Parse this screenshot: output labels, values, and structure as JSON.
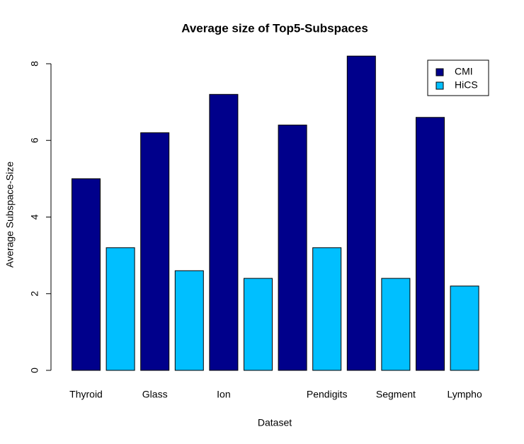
{
  "chart_data": {
    "type": "bar",
    "title": "Average size of Top5-Subspaces",
    "x_label": "Dataset",
    "y_label": "Average Subspace-Size",
    "categories": [
      "Thyroid",
      null,
      "Glass",
      null,
      "Ion",
      null,
      null,
      "Pendigits",
      null,
      "Segment",
      null,
      "Lympho"
    ],
    "series": [
      {
        "name": "CMI",
        "color": "#00008b",
        "values": [
          5,
          null,
          6.2,
          null,
          7.2,
          null,
          6.4,
          null,
          8.2,
          null,
          6.6,
          null
        ]
      },
      {
        "name": "HiCS",
        "color": "#00bfff",
        "values": [
          null,
          3.2,
          null,
          2.6,
          null,
          2.4,
          null,
          3.2,
          null,
          2.4,
          null,
          2.2
        ]
      }
    ],
    "ylim": [
      0,
      8.528
    ],
    "yticks": [
      0,
      2,
      4,
      6,
      8
    ],
    "legend": "top-right"
  }
}
